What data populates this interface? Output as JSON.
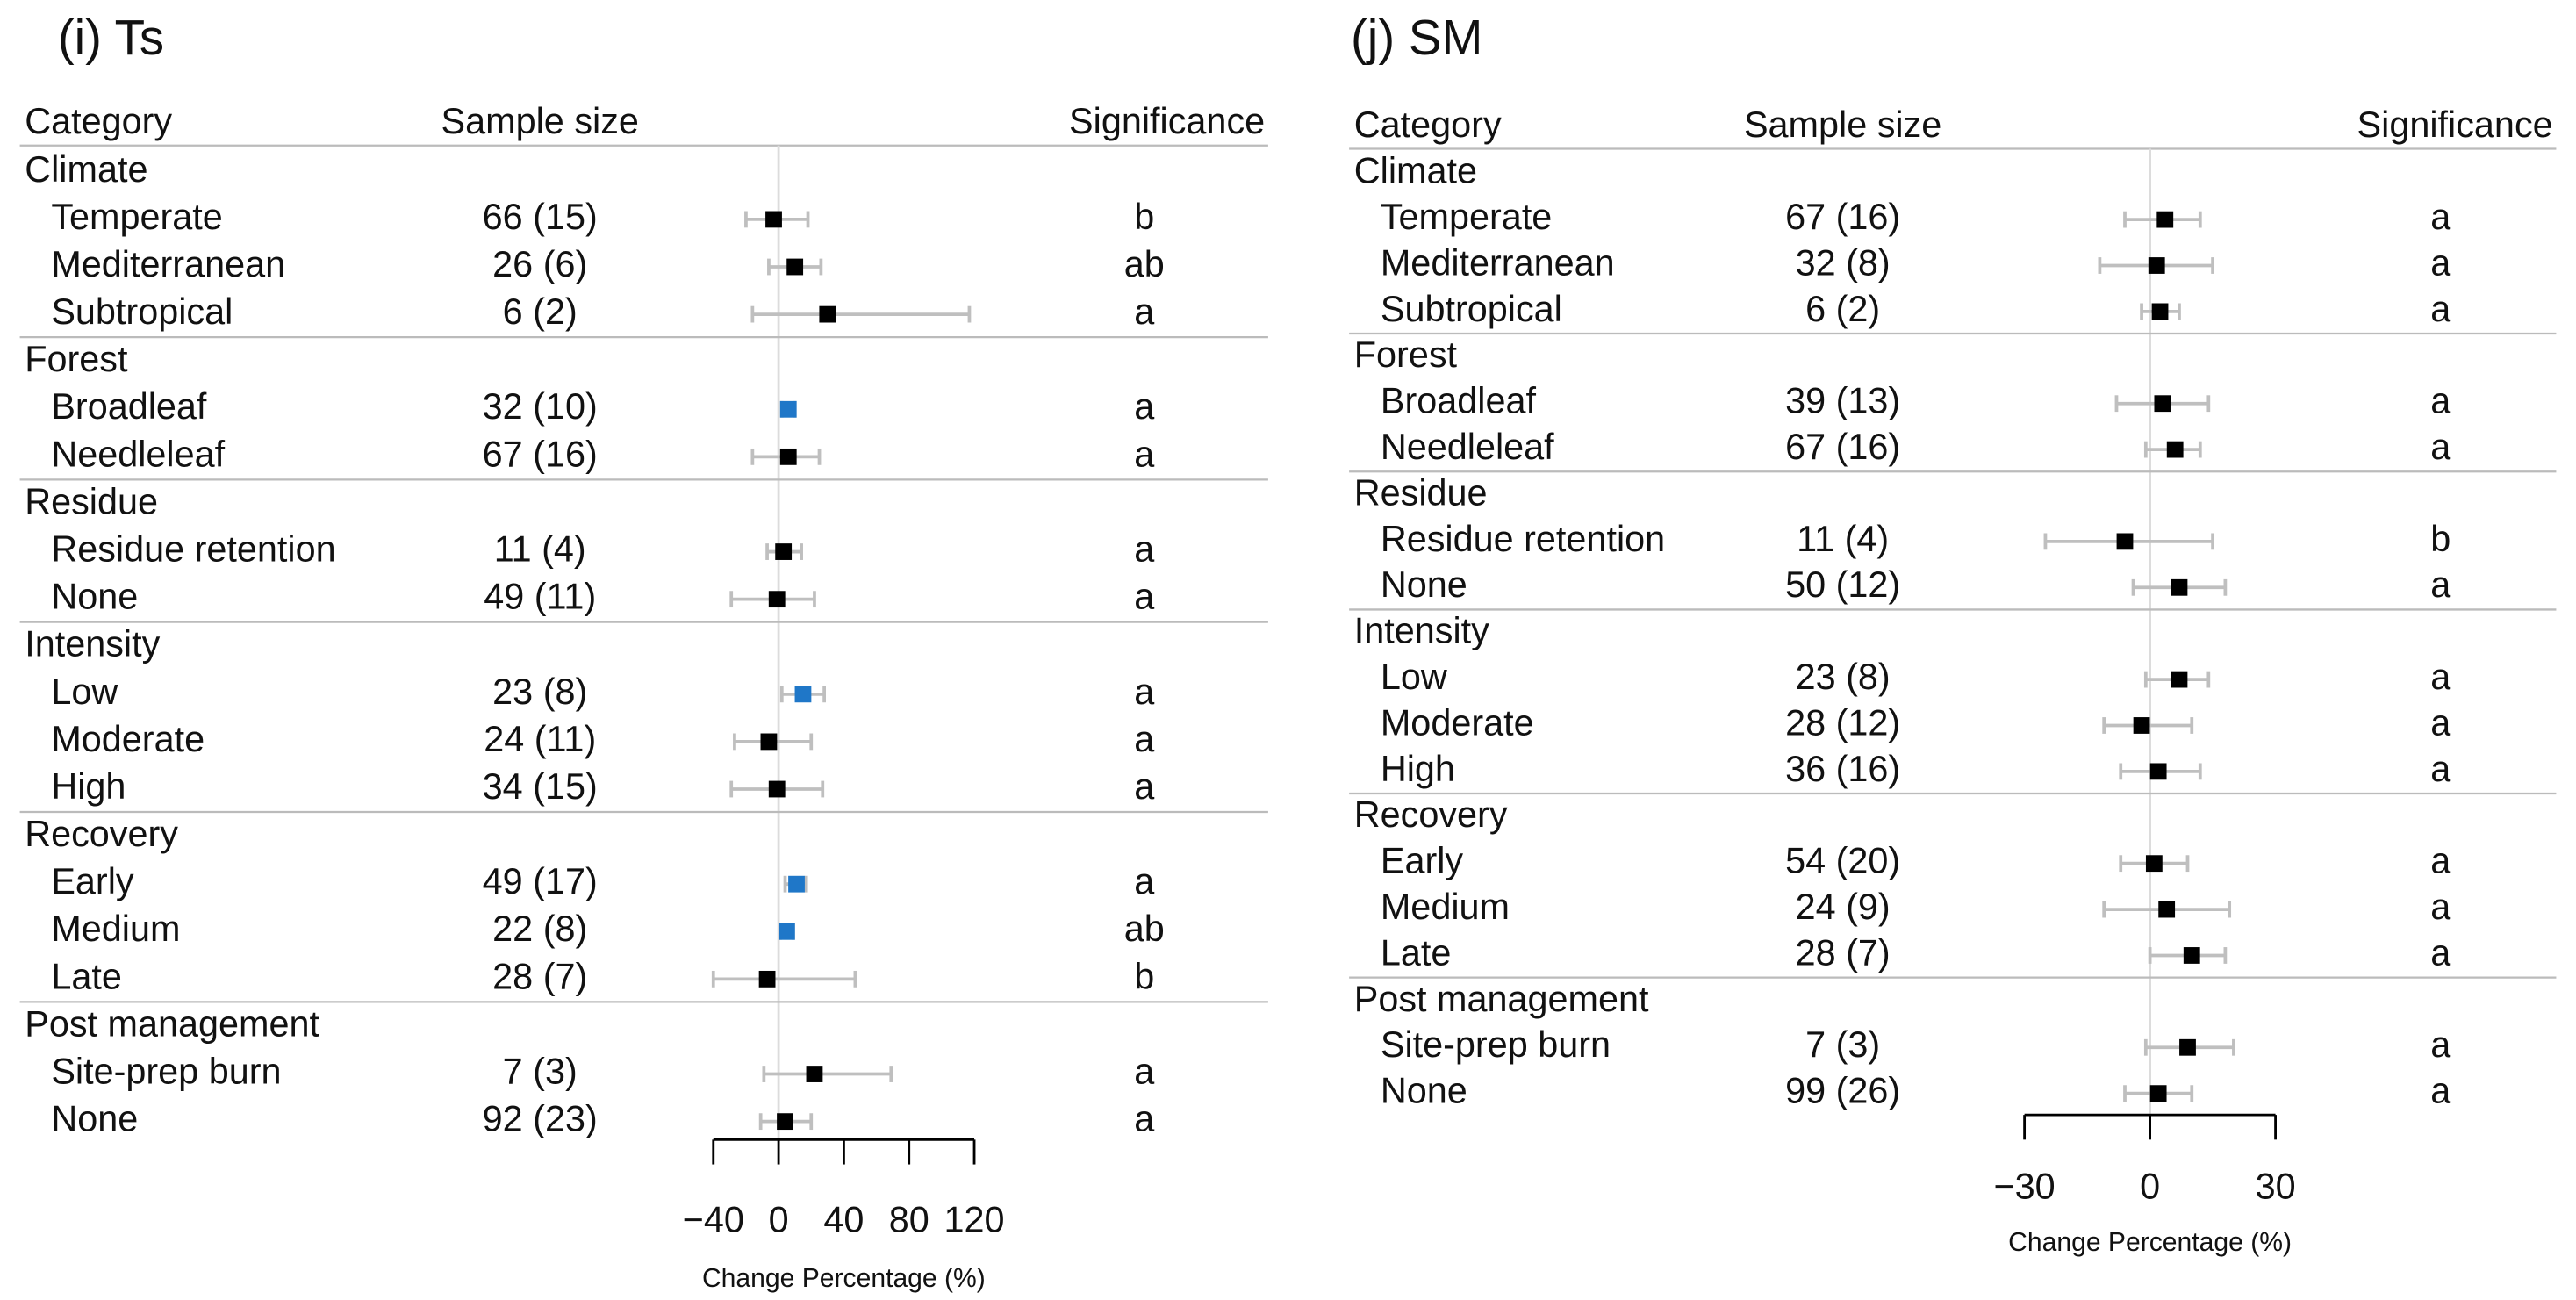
{
  "chart_data": [
    {
      "type": "forest",
      "title": "(i) Ts",
      "columns": [
        "Category",
        "Sample size",
        "Significance"
      ],
      "x_label": "Change Percentage (%)",
      "xlim": [
        -40,
        120
      ],
      "xticks": [
        {
          "value": -40,
          "label": "−40"
        },
        0,
        40,
        80,
        120
      ],
      "zero_line": true,
      "ci_color": "#bfbfbf",
      "groups": [
        {
          "name": "Climate",
          "rows": [
            {
              "category": "Temperate",
              "sample_size": "66 (15)",
              "value": -3,
              "lower": -20,
              "upper": 18,
              "significance": "b",
              "color": "#000000"
            },
            {
              "category": "Mediterranean",
              "sample_size": "26 (6)",
              "value": 10,
              "lower": -6,
              "upper": 26,
              "significance": "ab",
              "color": "#000000"
            },
            {
              "category": "Subtropical",
              "sample_size": "6 (2)",
              "value": 30,
              "lower": -16,
              "upper": 117,
              "significance": "a",
              "color": "#000000"
            }
          ]
        },
        {
          "name": "Forest",
          "rows": [
            {
              "category": "Broadleaf",
              "sample_size": "32 (10)",
              "value": 6,
              "lower": 2,
              "upper": 10,
              "significance": "a",
              "color": "#1f77c8"
            },
            {
              "category": "Needleleaf",
              "sample_size": "67 (16)",
              "value": 6,
              "lower": -16,
              "upper": 25,
              "significance": "a",
              "color": "#000000"
            }
          ]
        },
        {
          "name": "Residue",
          "rows": [
            {
              "category": "Residue retention",
              "sample_size": "11 (4)",
              "value": 3,
              "lower": -7,
              "upper": 14,
              "significance": "a",
              "color": "#000000"
            },
            {
              "category": "None",
              "sample_size": "49 (11)",
              "value": -1,
              "lower": -29,
              "upper": 22,
              "significance": "a",
              "color": "#000000"
            }
          ]
        },
        {
          "name": "Intensity",
          "rows": [
            {
              "category": "Low",
              "sample_size": "23 (8)",
              "value": 15,
              "lower": 2,
              "upper": 28,
              "significance": "a",
              "color": "#1f77c8"
            },
            {
              "category": "Moderate",
              "sample_size": "24 (11)",
              "value": -6,
              "lower": -27,
              "upper": 20,
              "significance": "a",
              "color": "#000000"
            },
            {
              "category": "High",
              "sample_size": "34 (15)",
              "value": -1,
              "lower": -29,
              "upper": 27,
              "significance": "a",
              "color": "#000000"
            }
          ]
        },
        {
          "name": "Recovery",
          "rows": [
            {
              "category": "Early",
              "sample_size": "49 (17)",
              "value": 11,
              "lower": 4,
              "upper": 17,
              "significance": "a",
              "color": "#1f77c8"
            },
            {
              "category": "Medium",
              "sample_size": "22 (8)",
              "value": 5,
              "lower": 1,
              "upper": 9,
              "significance": "ab",
              "color": "#1f77c8"
            },
            {
              "category": "Late",
              "sample_size": "28 (7)",
              "value": -7,
              "lower": -40,
              "upper": 47,
              "significance": "b",
              "color": "#000000"
            }
          ]
        },
        {
          "name": "Post management",
          "rows": [
            {
              "category": "Site-prep burn",
              "sample_size": "7 (3)",
              "value": 22,
              "lower": -9,
              "upper": 69,
              "significance": "a",
              "color": "#000000"
            },
            {
              "category": "None",
              "sample_size": "92 (23)",
              "value": 4,
              "lower": -11,
              "upper": 20,
              "significance": "a",
              "color": "#000000"
            }
          ]
        }
      ]
    },
    {
      "type": "forest",
      "title": "(j) SM",
      "columns": [
        "Category",
        "Sample size",
        "Significance"
      ],
      "x_label": "Change Percentage (%)",
      "xlim": [
        -30,
        30
      ],
      "xticks": [
        {
          "value": -30,
          "label": "−30"
        },
        0,
        30
      ],
      "zero_line": true,
      "ci_color": "#bfbfbf",
      "groups": [
        {
          "name": "Climate",
          "rows": [
            {
              "category": "Temperate",
              "sample_size": "67 (16)",
              "value": 3.6,
              "lower": -6,
              "upper": 12,
              "significance": "a",
              "color": "#000000"
            },
            {
              "category": "Mediterranean",
              "sample_size": "32 (8)",
              "value": 1.6,
              "lower": -12,
              "upper": 15,
              "significance": "a",
              "color": "#000000"
            },
            {
              "category": "Subtropical",
              "sample_size": "6 (2)",
              "value": 2.4,
              "lower": -2,
              "upper": 7,
              "significance": "a",
              "color": "#000000"
            }
          ]
        },
        {
          "name": "Forest",
          "rows": [
            {
              "category": "Broadleaf",
              "sample_size": "39 (13)",
              "value": 3,
              "lower": -8,
              "upper": 14,
              "significance": "a",
              "color": "#000000"
            },
            {
              "category": "Needleleaf",
              "sample_size": "67 (16)",
              "value": 6,
              "lower": -1,
              "upper": 12,
              "significance": "a",
              "color": "#000000"
            }
          ]
        },
        {
          "name": "Residue",
          "rows": [
            {
              "category": "Residue retention",
              "sample_size": "11 (4)",
              "value": -6,
              "lower": -25,
              "upper": 15,
              "significance": "b",
              "color": "#000000"
            },
            {
              "category": "None",
              "sample_size": "50 (12)",
              "value": 7,
              "lower": -4,
              "upper": 18,
              "significance": "a",
              "color": "#000000"
            }
          ]
        },
        {
          "name": "Intensity",
          "rows": [
            {
              "category": "Low",
              "sample_size": "23 (8)",
              "value": 7,
              "lower": -1,
              "upper": 14,
              "significance": "a",
              "color": "#000000"
            },
            {
              "category": "Moderate",
              "sample_size": "28 (12)",
              "value": -2,
              "lower": -11,
              "upper": 10,
              "significance": "a",
              "color": "#000000"
            },
            {
              "category": "High",
              "sample_size": "36 (16)",
              "value": 2,
              "lower": -7,
              "upper": 12,
              "significance": "a",
              "color": "#000000"
            }
          ]
        },
        {
          "name": "Recovery",
          "rows": [
            {
              "category": "Early",
              "sample_size": "54 (20)",
              "value": 1,
              "lower": -7,
              "upper": 9,
              "significance": "a",
              "color": "#000000"
            },
            {
              "category": "Medium",
              "sample_size": "24 (9)",
              "value": 4,
              "lower": -11,
              "upper": 19,
              "significance": "a",
              "color": "#000000"
            },
            {
              "category": "Late",
              "sample_size": "28 (7)",
              "value": 10,
              "lower": 0,
              "upper": 18,
              "significance": "a",
              "color": "#000000"
            }
          ]
        },
        {
          "name": "Post management",
          "rows": [
            {
              "category": "Site-prep burn",
              "sample_size": "7 (3)",
              "value": 9,
              "lower": -1,
              "upper": 20,
              "significance": "a",
              "color": "#000000"
            },
            {
              "category": "None",
              "sample_size": "99 (26)",
              "value": 2,
              "lower": -6,
              "upper": 10,
              "significance": "a",
              "color": "#000000"
            }
          ]
        }
      ]
    }
  ]
}
